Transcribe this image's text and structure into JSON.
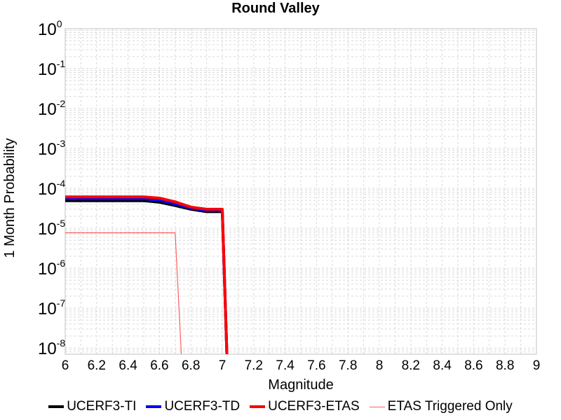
{
  "colors": {
    "ti": "#000000",
    "td": "#0000ff",
    "etas": "#ff0000",
    "triggered": "#ff6060",
    "grid": "#d9d9d9",
    "frame": "#c0c0c0"
  },
  "chart_data": {
    "type": "line",
    "title": "Round Valley",
    "xlabel": "Magnitude",
    "ylabel": "1 Month Probability",
    "xlim": [
      6,
      9
    ],
    "ylim": [
      7e-09,
      1
    ],
    "yscale": "log",
    "grid": true,
    "legend_position": "bottom",
    "x_ticks": [
      "6",
      "6.2",
      "6.4",
      "6.6",
      "6.8",
      "7",
      "7.2",
      "7.4",
      "7.6",
      "7.8",
      "8",
      "8.2",
      "8.4",
      "8.6",
      "8.8",
      "9"
    ],
    "y_ticks": [
      {
        "base": "10",
        "exp": "0"
      },
      {
        "base": "10",
        "exp": "-1"
      },
      {
        "base": "10",
        "exp": "-2"
      },
      {
        "base": "10",
        "exp": "-3"
      },
      {
        "base": "10",
        "exp": "-4"
      },
      {
        "base": "10",
        "exp": "-5"
      },
      {
        "base": "10",
        "exp": "-6"
      },
      {
        "base": "10",
        "exp": "-7"
      },
      {
        "base": "10",
        "exp": "-8"
      }
    ],
    "series": [
      {
        "name": "UCERF3-TI",
        "color": "#000000",
        "x": [
          6.0,
          6.5,
          6.6,
          6.7,
          6.8,
          6.9,
          7.0,
          7.03
        ],
        "y": [
          4.9e-05,
          4.9e-05,
          4.5e-05,
          3.7e-05,
          3e-05,
          2.6e-05,
          2.6e-05,
          5e-09
        ]
      },
      {
        "name": "UCERF3-TD",
        "color": "#0000ff",
        "x": [
          6.0,
          6.5,
          6.6,
          6.7,
          6.8,
          6.9,
          7.0,
          7.03
        ],
        "y": [
          5.5e-05,
          5.5e-05,
          5.1e-05,
          4.1e-05,
          3.2e-05,
          2.8e-05,
          2.8e-05,
          5e-09
        ]
      },
      {
        "name": "UCERF3-ETAS",
        "color": "#ff0000",
        "x": [
          6.0,
          6.5,
          6.6,
          6.7,
          6.8,
          6.9,
          7.0,
          7.03
        ],
        "y": [
          6.1e-05,
          6.1e-05,
          5.7e-05,
          4.6e-05,
          3.4e-05,
          3e-05,
          3e-05,
          5e-09
        ]
      },
      {
        "name": "ETAS Triggered Only",
        "color": "#ff6060",
        "x": [
          6.0,
          6.7,
          6.74
        ],
        "y": [
          7.7e-06,
          7.7e-06,
          5e-09
        ]
      }
    ]
  }
}
